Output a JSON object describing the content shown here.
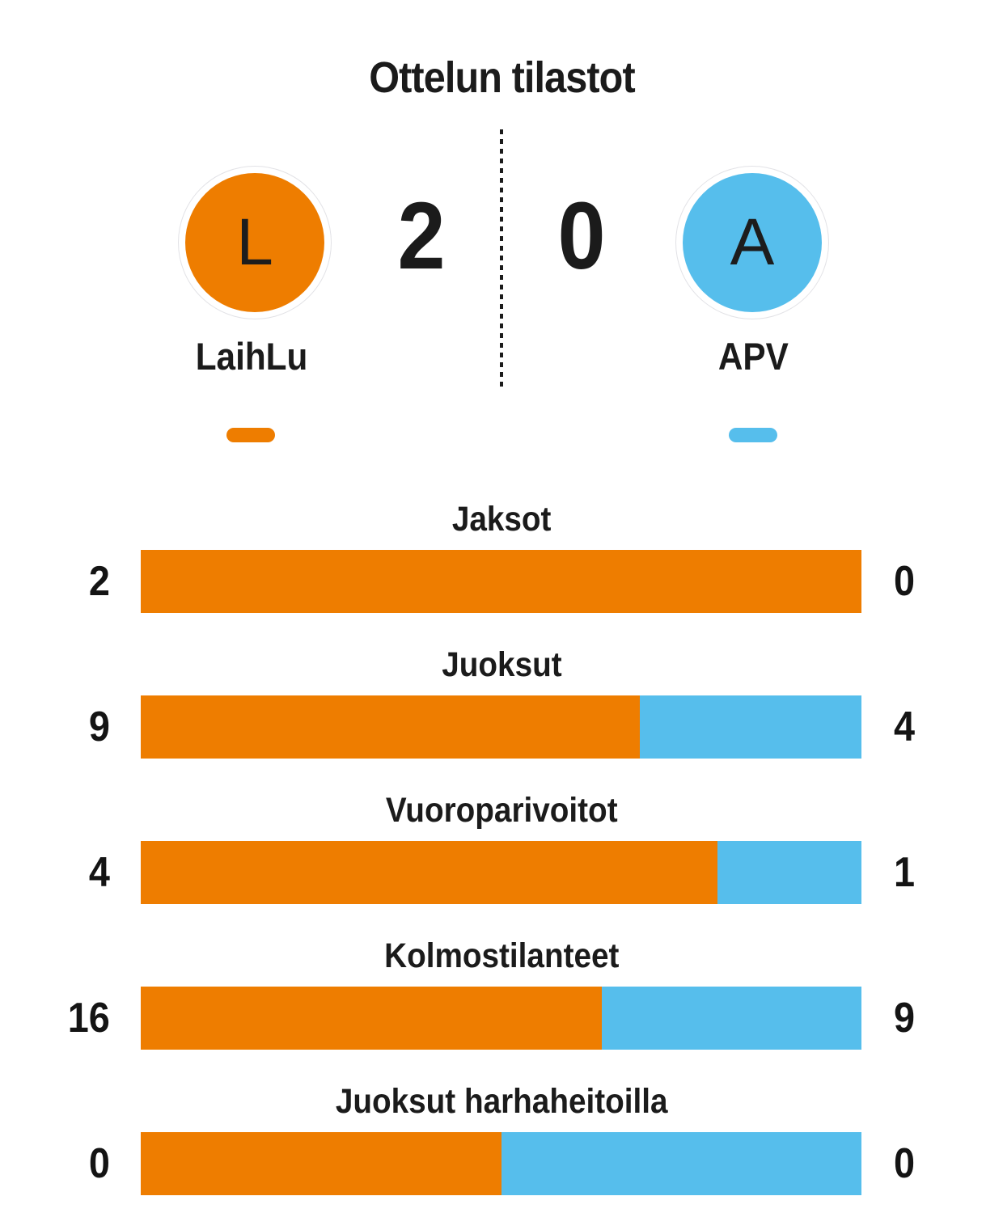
{
  "title": "Ottelun tilastot",
  "match": {
    "home": {
      "name": "LaihLu",
      "initial": "L",
      "score": "2",
      "color": "#EE7D00"
    },
    "away": {
      "name": "APV",
      "initial": "A",
      "score": "0",
      "color": "#56BEEC"
    }
  },
  "stats": [
    {
      "label": "Jaksot",
      "home": 2,
      "away": 0
    },
    {
      "label": "Juoksut",
      "home": 9,
      "away": 4
    },
    {
      "label": "Vuoroparivoitot",
      "home": 4,
      "away": 1
    },
    {
      "label": "Kolmostilanteet",
      "home": 16,
      "away": 9
    },
    {
      "label": "Juoksut harhaheitoilla",
      "home": 0,
      "away": 0
    }
  ],
  "chart_data": {
    "type": "bar",
    "title": "Ottelun tilastot",
    "categories": [
      "Jaksot",
      "Juoksut",
      "Vuoroparivoitot",
      "Kolmostilanteet",
      "Juoksut harhaheitoilla"
    ],
    "series": [
      {
        "name": "LaihLu",
        "color": "#EE7D00",
        "values": [
          2,
          9,
          4,
          16,
          0
        ]
      },
      {
        "name": "APV",
        "color": "#56BEEC",
        "values": [
          0,
          4,
          1,
          9,
          0
        ]
      }
    ],
    "score": {
      "LaihLu": 2,
      "APV": 0
    },
    "layout": "each bar shows home/(home+away) share in home color, remainder in away color; 50/50 when both values are zero"
  }
}
